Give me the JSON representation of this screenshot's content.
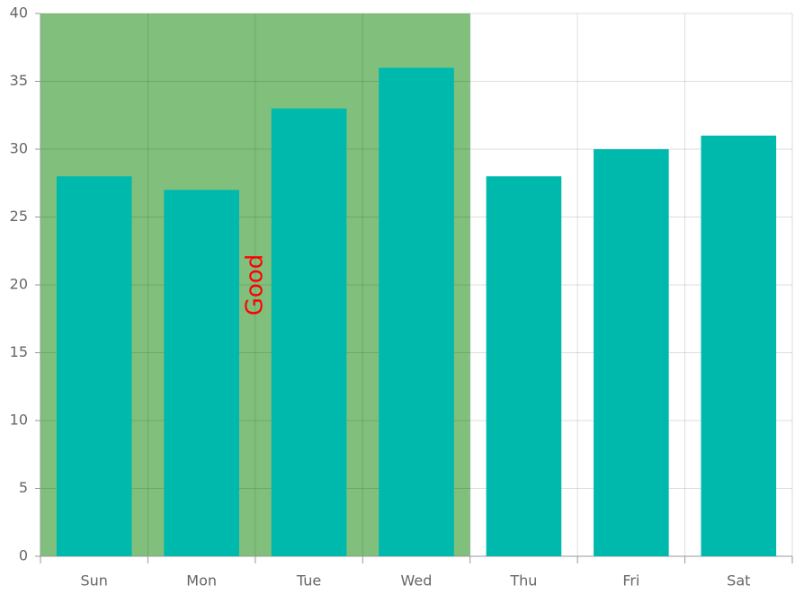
{
  "chart_data": {
    "type": "bar",
    "categories": [
      "Sun",
      "Mon",
      "Tue",
      "Wed",
      "Thu",
      "Fri",
      "Sat"
    ],
    "values": [
      28,
      27,
      33,
      36,
      28,
      30,
      31
    ],
    "color": "#00b9ad",
    "ylim": [
      0,
      40
    ],
    "yticks": [
      0,
      5,
      10,
      15,
      20,
      25,
      30,
      35,
      40
    ],
    "grid": true,
    "band": {
      "from": "Sun",
      "to": "Wed",
      "label": "Good",
      "color": "#80c07c",
      "label_color": "#ff0000"
    }
  }
}
